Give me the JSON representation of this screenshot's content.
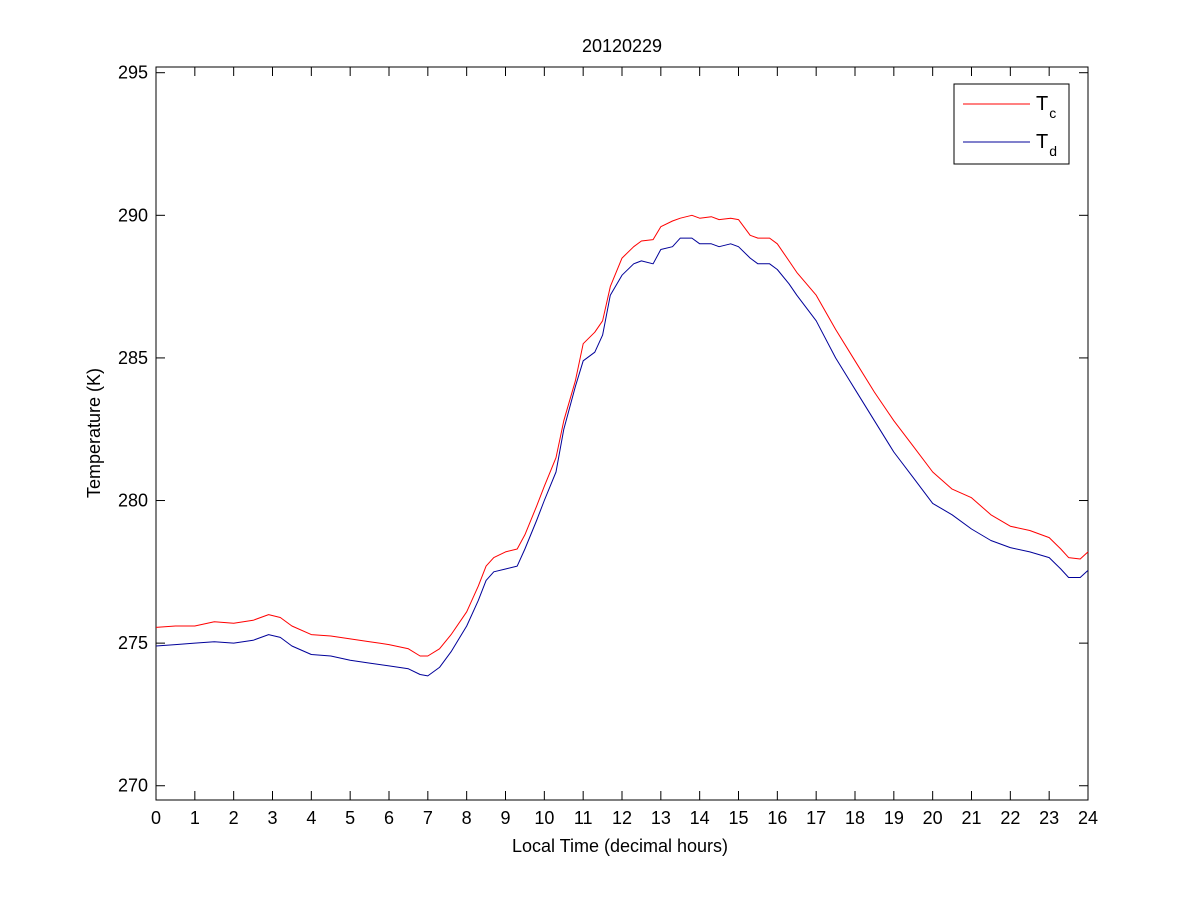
{
  "chart_data": {
    "type": "line",
    "title": "20120229",
    "xlabel": "Local Time (decimal hours)",
    "ylabel": "Temperature (K)",
    "xlim": [
      0,
      24
    ],
    "ylim": [
      269.5,
      295.2
    ],
    "xticks": [
      0,
      1,
      2,
      3,
      4,
      5,
      6,
      7,
      8,
      9,
      10,
      11,
      12,
      13,
      14,
      15,
      16,
      17,
      18,
      19,
      20,
      21,
      22,
      23,
      24
    ],
    "xtick_labels": [
      "0",
      "1",
      "2",
      "3",
      "4",
      "5",
      "6",
      "7",
      "8",
      "9",
      "10",
      "11",
      "12",
      "13",
      "14",
      "15",
      "16",
      "17",
      "18",
      "19",
      "20",
      "21",
      "22",
      "23",
      "24"
    ],
    "yticks": [
      270,
      275,
      280,
      285,
      290,
      295
    ],
    "ytick_labels": [
      "270",
      "275",
      "280",
      "285",
      "290",
      "295"
    ],
    "grid": false,
    "legend_position": "top-right",
    "series": [
      {
        "name": "T_c",
        "legend_main": "T",
        "legend_sub": "c",
        "color": "#ff0000",
        "x": [
          0,
          0.5,
          1,
          1.5,
          2,
          2.5,
          2.9,
          3.2,
          3.5,
          4,
          4.5,
          5,
          5.5,
          6,
          6.5,
          6.8,
          7,
          7.3,
          7.6,
          8,
          8.3,
          8.5,
          8.7,
          9,
          9.3,
          9.5,
          9.8,
          10,
          10.3,
          10.5,
          10.8,
          11,
          11.3,
          11.5,
          11.7,
          12,
          12.3,
          12.5,
          12.8,
          13,
          13.3,
          13.5,
          13.8,
          14,
          14.3,
          14.5,
          14.8,
          15,
          15.3,
          15.5,
          15.8,
          16,
          16.3,
          16.5,
          17,
          17.5,
          18,
          18.5,
          19,
          19.5,
          20,
          20.5,
          21,
          21.5,
          22,
          22.5,
          23,
          23.3,
          23.5,
          23.8,
          24
        ],
        "values": [
          275.55,
          275.6,
          275.6,
          275.75,
          275.7,
          275.8,
          276.0,
          275.9,
          275.6,
          275.3,
          275.25,
          275.15,
          275.05,
          274.95,
          274.8,
          274.55,
          274.55,
          274.8,
          275.3,
          276.1,
          277.0,
          277.7,
          278.0,
          278.2,
          278.3,
          278.8,
          279.8,
          280.5,
          281.5,
          282.8,
          284.2,
          285.5,
          285.9,
          286.3,
          287.5,
          288.5,
          288.9,
          289.1,
          289.15,
          289.6,
          289.8,
          289.9,
          290.0,
          289.9,
          289.95,
          289.85,
          289.9,
          289.85,
          289.3,
          289.2,
          289.2,
          289.0,
          288.4,
          288.0,
          287.2,
          286.0,
          284.9,
          283.8,
          282.8,
          281.9,
          281.0,
          280.4,
          280.1,
          279.5,
          279.1,
          278.95,
          278.7,
          278.3,
          278.0,
          277.95,
          278.2
        ]
      },
      {
        "name": "T_d",
        "legend_main": "T",
        "legend_sub": "d",
        "color": "#000099",
        "x": [
          0,
          0.5,
          1,
          1.5,
          2,
          2.5,
          2.9,
          3.2,
          3.5,
          4,
          4.5,
          5,
          5.5,
          6,
          6.5,
          6.8,
          7,
          7.3,
          7.6,
          8,
          8.3,
          8.5,
          8.7,
          9,
          9.3,
          9.5,
          9.8,
          10,
          10.3,
          10.5,
          10.8,
          11,
          11.3,
          11.5,
          11.7,
          12,
          12.3,
          12.5,
          12.8,
          13,
          13.3,
          13.5,
          13.8,
          14,
          14.3,
          14.5,
          14.8,
          15,
          15.3,
          15.5,
          15.8,
          16,
          16.3,
          16.5,
          17,
          17.5,
          18,
          18.5,
          19,
          19.5,
          20,
          20.5,
          21,
          21.5,
          22,
          22.5,
          23,
          23.3,
          23.5,
          23.8,
          24
        ],
        "values": [
          274.9,
          274.95,
          275.0,
          275.05,
          275.0,
          275.1,
          275.3,
          275.2,
          274.9,
          274.6,
          274.55,
          274.4,
          274.3,
          274.2,
          274.1,
          273.9,
          273.85,
          274.15,
          274.7,
          275.6,
          276.5,
          277.2,
          277.5,
          277.6,
          277.7,
          278.3,
          279.3,
          280.0,
          281.0,
          282.5,
          284.0,
          284.9,
          285.2,
          285.8,
          287.2,
          287.9,
          288.3,
          288.4,
          288.3,
          288.8,
          288.9,
          289.2,
          289.2,
          289.0,
          289.0,
          288.9,
          289.0,
          288.9,
          288.5,
          288.3,
          288.3,
          288.1,
          287.6,
          287.2,
          286.3,
          285.0,
          283.9,
          282.8,
          281.7,
          280.8,
          279.9,
          279.5,
          279.0,
          278.6,
          278.35,
          278.2,
          278.0,
          277.6,
          277.3,
          277.3,
          277.55
        ]
      }
    ]
  }
}
